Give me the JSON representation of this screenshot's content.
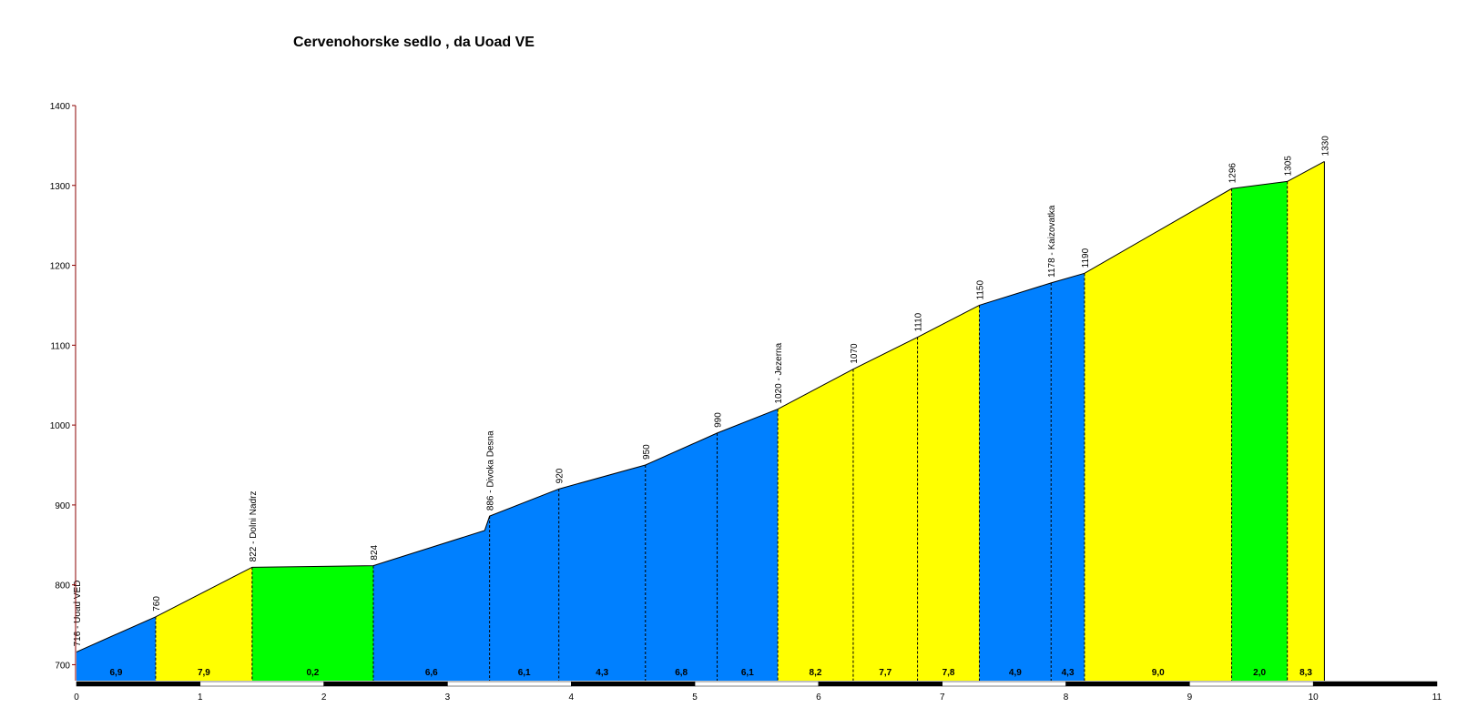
{
  "chart_data": {
    "type": "area",
    "title": "Cervenohorske sedlo , da Uoad VE",
    "xlim": [
      0,
      11
    ],
    "ylim": [
      680,
      1400
    ],
    "x_ticks": [
      0,
      1,
      2,
      3,
      4,
      5,
      6,
      7,
      8,
      9,
      10,
      11
    ],
    "y_ticks": [
      700,
      800,
      900,
      1000,
      1100,
      1200,
      1300,
      1400
    ],
    "points": [
      {
        "x": 0.0,
        "y": 716,
        "label": "716 - Uoad VED"
      },
      {
        "x": 0.64,
        "y": 760,
        "label": "760"
      },
      {
        "x": 1.42,
        "y": 822,
        "label": "822 - Dolni Nadrz"
      },
      {
        "x": 1.92,
        "y": 823,
        "label": ""
      },
      {
        "x": 2.4,
        "y": 824,
        "label": "824"
      },
      {
        "x": 3.3,
        "y": 868,
        "label": ""
      },
      {
        "x": 3.34,
        "y": 886,
        "label": "886 - Divoka Desna"
      },
      {
        "x": 3.9,
        "y": 920,
        "label": "920"
      },
      {
        "x": 4.6,
        "y": 950,
        "label": "950"
      },
      {
        "x": 5.18,
        "y": 990,
        "label": "990"
      },
      {
        "x": 5.67,
        "y": 1020,
        "label": "1020 - Jezerna"
      },
      {
        "x": 6.28,
        "y": 1070,
        "label": "1070"
      },
      {
        "x": 6.8,
        "y": 1110,
        "label": "1110"
      },
      {
        "x": 7.3,
        "y": 1150,
        "label": "1150"
      },
      {
        "x": 7.88,
        "y": 1178,
        "label": "1178 - Kaizovatka"
      },
      {
        "x": 8.15,
        "y": 1190,
        "label": "1190"
      },
      {
        "x": 9.34,
        "y": 1296,
        "label": "1296"
      },
      {
        "x": 9.79,
        "y": 1305,
        "label": "1305"
      },
      {
        "x": 10.09,
        "y": 1330,
        "label": "1330"
      }
    ],
    "segments": [
      {
        "start": 0.0,
        "end": 0.64,
        "gradient": "6,9",
        "color": "#0080ff"
      },
      {
        "start": 0.64,
        "end": 1.42,
        "gradient": "7,9",
        "color": "#ffff00"
      },
      {
        "start": 1.42,
        "end": 2.4,
        "gradient": "0,2",
        "color": "#00ff00"
      },
      {
        "start": 2.4,
        "end": 3.34,
        "gradient": "6,6",
        "color": "#0080ff"
      },
      {
        "start": 3.34,
        "end": 3.9,
        "gradient": "6,1",
        "color": "#0080ff"
      },
      {
        "start": 3.9,
        "end": 4.6,
        "gradient": "4,3",
        "color": "#0080ff"
      },
      {
        "start": 4.6,
        "end": 5.18,
        "gradient": "6,8",
        "color": "#0080ff"
      },
      {
        "start": 5.18,
        "end": 5.67,
        "gradient": "6,1",
        "color": "#0080ff"
      },
      {
        "start": 5.67,
        "end": 6.28,
        "gradient": "8,2",
        "color": "#ffff00"
      },
      {
        "start": 6.28,
        "end": 6.8,
        "gradient": "7,7",
        "color": "#ffff00"
      },
      {
        "start": 6.8,
        "end": 7.3,
        "gradient": "7,8",
        "color": "#ffff00"
      },
      {
        "start": 7.3,
        "end": 7.88,
        "gradient": "4,9",
        "color": "#0080ff"
      },
      {
        "start": 7.88,
        "end": 8.15,
        "gradient": "4,3",
        "color": "#0080ff"
      },
      {
        "start": 8.15,
        "end": 9.34,
        "gradient": "9,0",
        "color": "#ffff00"
      },
      {
        "start": 9.34,
        "end": 9.79,
        "gradient": "2,0",
        "color": "#00ff00"
      },
      {
        "start": 9.79,
        "end": 10.09,
        "gradient": "8,3",
        "color": "#ffff00"
      }
    ],
    "grid": false,
    "colors": {
      "blue": "#0080ff",
      "yellow": "#ffff00",
      "green": "#00ff00",
      "axis": "#8b0000"
    }
  }
}
